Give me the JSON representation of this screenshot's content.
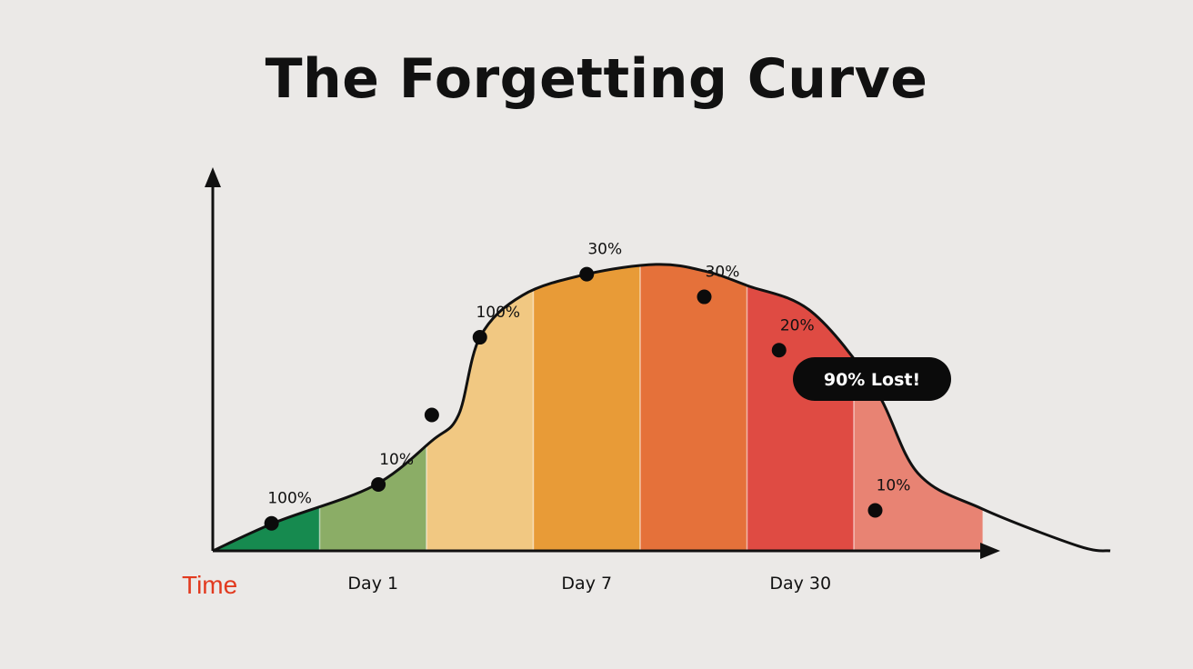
{
  "chart_data": {
    "type": "area",
    "title": "The Forgetting Curve",
    "xlabel": "Time",
    "ylabel": "",
    "x_ticks": [
      {
        "label": "Day 1",
        "x": 1.5
      },
      {
        "label": "Day 7",
        "x": 3.5
      },
      {
        "label": "Day 30",
        "x": 5.5
      }
    ],
    "xlim": [
      0,
      7.2
    ],
    "ylim": [
      0,
      1
    ],
    "curve": [
      [
        0,
        0.0
      ],
      [
        0.6,
        0.09
      ],
      [
        1.5,
        0.2
      ],
      [
        2.05,
        0.34
      ],
      [
        2.3,
        0.42
      ],
      [
        2.5,
        0.66
      ],
      [
        2.9,
        0.79
      ],
      [
        3.5,
        0.855
      ],
      [
        4.15,
        0.885
      ],
      [
        4.6,
        0.865
      ],
      [
        5.0,
        0.82
      ],
      [
        5.6,
        0.74
      ],
      [
        6.2,
        0.5
      ],
      [
        6.6,
        0.24
      ],
      [
        7.2,
        0.13
      ],
      [
        8.1,
        0.015
      ],
      [
        8.4,
        0.0
      ]
    ],
    "bands": [
      {
        "from": 0.0,
        "to": 1.0,
        "color": "#168a4f"
      },
      {
        "from": 1.0,
        "to": 2.0,
        "color": "#8bad66"
      },
      {
        "from": 2.0,
        "to": 3.0,
        "color": "#f1c882"
      },
      {
        "from": 3.0,
        "to": 4.0,
        "color": "#e89b37"
      },
      {
        "from": 4.0,
        "to": 5.0,
        "color": "#e5713a"
      },
      {
        "from": 5.0,
        "to": 6.0,
        "color": "#df4b43"
      },
      {
        "from": 6.0,
        "to": 7.2,
        "color": "#e88373"
      }
    ],
    "points": [
      {
        "x": 0.55,
        "y": 0.085,
        "label": "100%"
      },
      {
        "x": 1.55,
        "y": 0.205,
        "label": "10%"
      },
      {
        "x": 2.05,
        "y": 0.42,
        "label": ""
      },
      {
        "x": 2.5,
        "y": 0.66,
        "label": "100%"
      },
      {
        "x": 3.5,
        "y": 0.855,
        "label": "30%"
      },
      {
        "x": 4.6,
        "y": 0.785,
        "label": "30%"
      },
      {
        "x": 5.3,
        "y": 0.62,
        "label": "20%"
      },
      {
        "x": 6.2,
        "y": 0.125,
        "label": "10%"
      }
    ],
    "annotation": {
      "text": "90% Lost!",
      "x": 6.15,
      "y": 0.46
    }
  }
}
